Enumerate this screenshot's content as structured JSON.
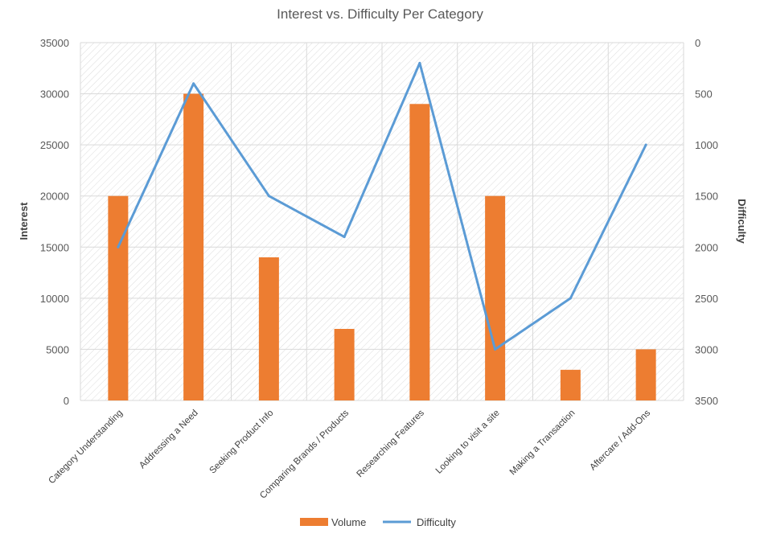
{
  "chart_data": {
    "type": "bar",
    "title": "Interest vs. Difficulty Per Category",
    "categories": [
      "Category Understanding",
      "Addressing a Need",
      "Seeking Product Info",
      "Comparing Brands / Products",
      "Researching Features",
      "Looking to visit a site",
      "Making a Transaction",
      "Aftercare / Add-Ons"
    ],
    "series": [
      {
        "name": "Volume",
        "type": "bar",
        "axis": "left",
        "color": "#ED7D31",
        "values": [
          20000,
          30000,
          14000,
          7000,
          29000,
          20000,
          3000,
          5000
        ]
      },
      {
        "name": "Difficulty",
        "type": "line",
        "axis": "right",
        "color": "#5B9BD5",
        "values": [
          2000,
          400,
          1500,
          1900,
          200,
          3000,
          2500,
          1000
        ]
      }
    ],
    "y_left": {
      "label": "Interest",
      "ylim": [
        0,
        35000
      ],
      "ticks": [
        0,
        5000,
        10000,
        15000,
        20000,
        25000,
        30000,
        35000
      ]
    },
    "y_right": {
      "label": "Difficulty",
      "ylim": [
        0,
        3500
      ],
      "inverted": true,
      "ticks": [
        0,
        500,
        1000,
        1500,
        2000,
        2500,
        3000,
        3500
      ]
    },
    "grid": true,
    "legend_position": "bottom"
  }
}
